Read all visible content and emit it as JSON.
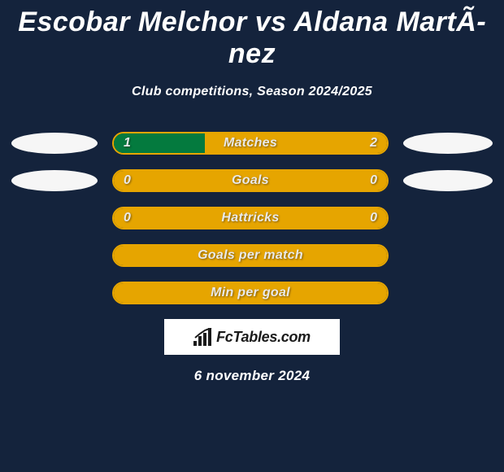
{
  "title": "Escobar Melchor vs Aldana MartÃ­nez",
  "subtitle": "Club competitions, Season 2024/2025",
  "colors": {
    "background": "#14233c",
    "left_seg": "#047a3e",
    "right_seg": "#e6a500",
    "bar_border": "#e6a500",
    "ellipse": "#f6f6f6",
    "text": "#ffffff",
    "logo_bg": "#ffffff",
    "logo_text": "#1b1b1b"
  },
  "rows": [
    {
      "label": "Matches",
      "left": "1",
      "right": "2",
      "left_pct": 33.3,
      "right_pct": 66.7,
      "show_ellipses": true,
      "show_values": true
    },
    {
      "label": "Goals",
      "left": "0",
      "right": "0",
      "left_pct": 0,
      "right_pct": 100,
      "show_ellipses": true,
      "show_values": true
    },
    {
      "label": "Hattricks",
      "left": "0",
      "right": "0",
      "left_pct": 0,
      "right_pct": 100,
      "show_ellipses": false,
      "show_values": true
    },
    {
      "label": "Goals per match",
      "left": "",
      "right": "",
      "left_pct": 0,
      "right_pct": 100,
      "show_ellipses": false,
      "show_values": false
    },
    {
      "label": "Min per goal",
      "left": "",
      "right": "",
      "left_pct": 0,
      "right_pct": 100,
      "show_ellipses": false,
      "show_values": false
    }
  ],
  "logo_text": "FcTables.com",
  "date": "6 november 2024"
}
